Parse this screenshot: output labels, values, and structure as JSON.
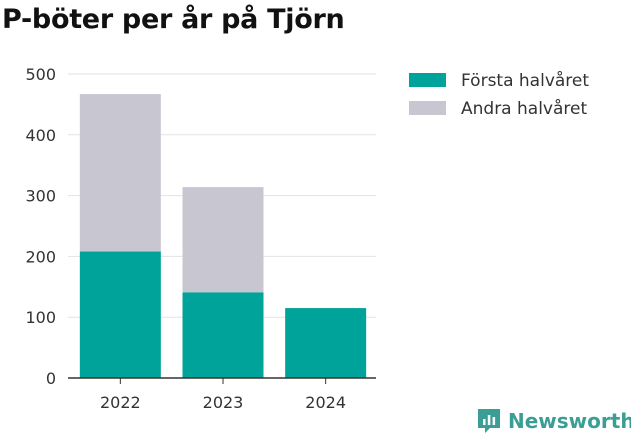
{
  "title": "P-böter per år på Tjörn",
  "brand": "Newsworthy",
  "colors": {
    "first_half": "#00a39a",
    "second_half": "#c8c7d1",
    "brand": "#3a9e95"
  },
  "chart_data": {
    "type": "bar",
    "stacked": true,
    "categories": [
      "2022",
      "2023",
      "2024"
    ],
    "series": [
      {
        "name": "Första halvåret",
        "values": [
          208,
          141,
          115
        ]
      },
      {
        "name": "Andra halvåret",
        "values": [
          259,
          173,
          0
        ]
      }
    ],
    "ylim": [
      0,
      500
    ],
    "yticks": [
      "0",
      "100",
      "200",
      "300",
      "400",
      "500"
    ],
    "grid": true,
    "legend_position": "top-right"
  }
}
